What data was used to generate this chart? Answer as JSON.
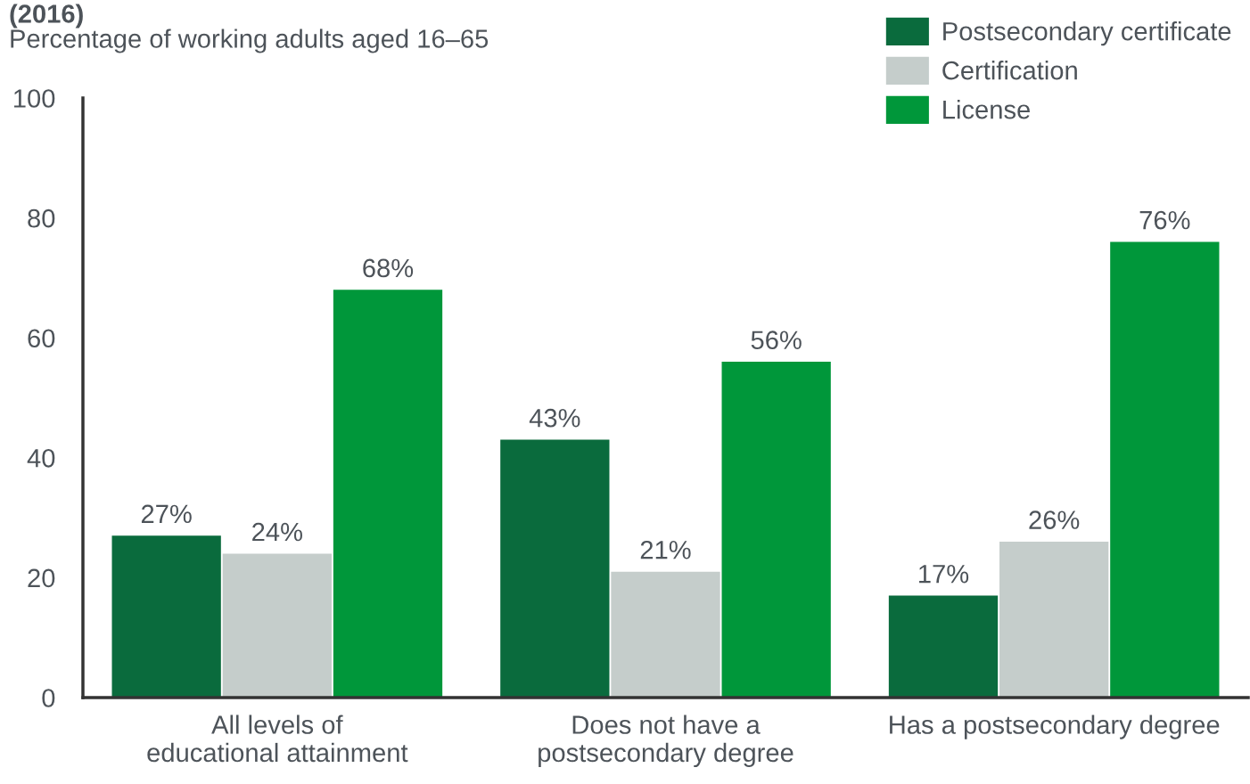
{
  "chart_data": {
    "type": "bar",
    "title": "(2016)",
    "subtitle": "Percentage of working adults aged 16–65",
    "categories": [
      "All levels of\neducational attainment",
      "Does not have a\npostsecondary degree",
      "Has a postsecondary degree"
    ],
    "series": [
      {
        "name": "Postsecondary certificate",
        "color": "#0a6b3d",
        "values": [
          27,
          43,
          17
        ],
        "value_labels": [
          "27%",
          "43%",
          "17%"
        ]
      },
      {
        "name": "Certification",
        "color": "#c5cdcb",
        "values": [
          24,
          21,
          26
        ],
        "value_labels": [
          "24%",
          "21%",
          "26%"
        ]
      },
      {
        "name": "License",
        "color": "#00973a",
        "values": [
          68,
          56,
          76
        ],
        "value_labels": [
          "68%",
          "56%",
          "76%"
        ]
      }
    ],
    "ylim": [
      0,
      100
    ],
    "yticks": [
      0,
      20,
      40,
      60,
      80,
      100
    ],
    "grid": false,
    "legend": "top right"
  }
}
